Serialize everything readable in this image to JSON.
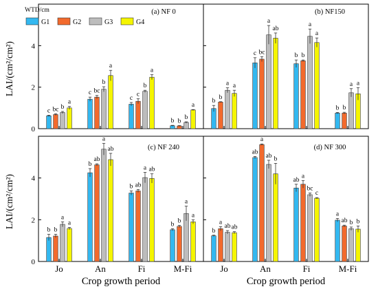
{
  "chart_data": {
    "type": "bar",
    "xlabel": "Crop growth period",
    "ylabel": "LAI/(cm²/cm²)",
    "legend": {
      "title": "WTD/cm",
      "placement": "top-left"
    },
    "categories": [
      "Jo",
      "An",
      "Fi",
      "M-Fi"
    ],
    "ylim": [
      0,
      6
    ],
    "yticks": [
      0,
      2,
      4
    ],
    "series_names": [
      "G1",
      "G2",
      "G3",
      "G4"
    ],
    "colors": [
      "#33b8f0",
      "#f26a2d",
      "#bdbdbd",
      "#f5f500"
    ],
    "panels": [
      {
        "title": "(a) NF 0",
        "values": [
          [
            0.62,
            1.42,
            1.18,
            0.14
          ],
          [
            0.68,
            1.52,
            1.32,
            0.13
          ],
          [
            0.78,
            1.9,
            1.8,
            0.3
          ],
          [
            1.0,
            2.56,
            2.48,
            0.9
          ]
        ],
        "errors": [
          [
            0.03,
            0.1,
            0.08,
            0.02
          ],
          [
            0.04,
            0.08,
            0.12,
            0.02
          ],
          [
            0.05,
            0.12,
            0.05,
            0.03
          ],
          [
            0.07,
            0.25,
            0.12,
            0.02
          ]
        ],
        "letters": [
          [
            "c",
            "c",
            "c",
            "b"
          ],
          [
            "bc",
            "bc",
            "c",
            "b"
          ],
          [
            "b",
            "b",
            "b",
            "b"
          ],
          [
            "a",
            "a",
            "a",
            "a"
          ]
        ]
      },
      {
        "title": "(b) NF150",
        "values": [
          [
            0.97,
            3.17,
            3.13,
            0.75
          ],
          [
            1.28,
            3.35,
            3.27,
            0.75
          ],
          [
            1.85,
            4.52,
            4.45,
            1.73
          ],
          [
            1.7,
            4.36,
            4.15,
            1.68
          ]
        ],
        "errors": [
          [
            0.15,
            0.25,
            0.18,
            0.03
          ],
          [
            0.02,
            0.12,
            0.04,
            0.04
          ],
          [
            0.12,
            0.45,
            0.35,
            0.2
          ],
          [
            0.15,
            0.25,
            0.22,
            0.3
          ]
        ],
        "letters": [
          [
            "b",
            "c",
            "b",
            "b"
          ],
          [
            "b",
            "bc",
            "b",
            "b"
          ],
          [
            "a",
            "a",
            "a",
            "a"
          ],
          [
            "a",
            "ab",
            "a",
            "a"
          ]
        ]
      },
      {
        "title": "(c) NF 240",
        "values": [
          [
            1.15,
            4.25,
            3.28,
            1.52
          ],
          [
            1.22,
            4.63,
            3.38,
            1.68
          ],
          [
            1.78,
            5.38,
            4.02,
            2.3
          ],
          [
            1.58,
            4.88,
            3.98,
            1.9
          ]
        ],
        "errors": [
          [
            0.15,
            0.2,
            0.1,
            0.05
          ],
          [
            0.08,
            0.05,
            0.07,
            0.05
          ],
          [
            0.12,
            0.28,
            0.25,
            0.35
          ],
          [
            0.05,
            0.3,
            0.22,
            0.1
          ]
        ],
        "letters": [
          [
            "b",
            "b",
            "b",
            "b"
          ],
          [
            "b",
            "ab",
            "ab",
            "b"
          ],
          [
            "a",
            "a",
            "a",
            "a"
          ],
          [
            "a",
            "ab",
            "ab",
            "a"
          ]
        ]
      },
      {
        "title": "(d) NF 300",
        "values": [
          [
            1.23,
            4.98,
            3.52,
            1.98
          ],
          [
            1.57,
            5.6,
            3.7,
            1.7
          ],
          [
            1.4,
            4.65,
            3.2,
            1.57
          ],
          [
            1.38,
            4.2,
            3.03,
            1.55
          ]
        ],
        "errors": [
          [
            0.03,
            0.05,
            0.18,
            0.08
          ],
          [
            0.1,
            0.03,
            0.18,
            0.04
          ],
          [
            0.08,
            0.2,
            0.08,
            0.08
          ],
          [
            0.05,
            0.5,
            0.03,
            0.15
          ]
        ],
        "letters": [
          [
            "b",
            "ab",
            "ab",
            "a"
          ],
          [
            "a",
            "a",
            "a",
            "ab"
          ],
          [
            "ab",
            "ab",
            "bc",
            "b"
          ],
          [
            "ab",
            "b",
            "c",
            "b"
          ]
        ]
      }
    ]
  }
}
